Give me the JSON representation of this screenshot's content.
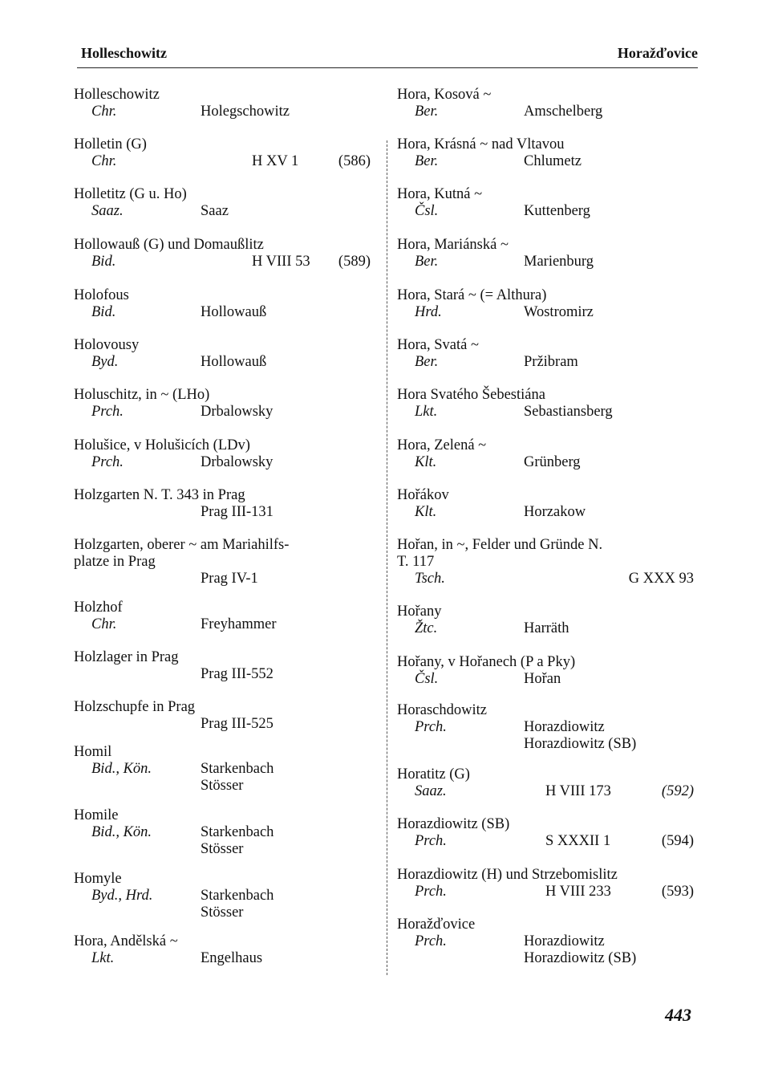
{
  "header": {
    "left": "Holleschowitz",
    "right": "Horažďovice"
  },
  "page_number": "443",
  "left_column": [
    {
      "head": "Holleschowitz",
      "rows": [
        {
          "abbr": "Chr.",
          "target": "Holegschowitz"
        }
      ]
    },
    {
      "head": "Holletin (G)",
      "rows": [
        {
          "abbr": "Chr.",
          "ref": "H XV 1",
          "page": "(586)"
        }
      ]
    },
    {
      "head": "Holletitz (G u. Ho)",
      "rows": [
        {
          "abbr": "Saaz.",
          "target": "Saaz"
        }
      ]
    },
    {
      "head": "Hollowauß (G) und Domaußlitz",
      "rows": [
        {
          "abbr": "Bid.",
          "ref": "H VIII 53",
          "page": "(589)"
        }
      ]
    },
    {
      "head": "Holofous",
      "rows": [
        {
          "abbr": "Bid.",
          "target": "Hollowauß"
        }
      ]
    },
    {
      "head": "Holovousy",
      "rows": [
        {
          "abbr": "Byd.",
          "target": "Hollowauß"
        }
      ]
    },
    {
      "head": "Holuschitz, in ~ (LHo)",
      "rows": [
        {
          "abbr": "Prch.",
          "target": "Drbalowsky"
        }
      ]
    },
    {
      "head": "Holušice, v Holušicích (LDv)",
      "rows": [
        {
          "abbr": "Prch.",
          "target": "Drbalowsky"
        }
      ]
    },
    {
      "head": "Holzgarten N. T. 343 in Prag",
      "rows": [
        {
          "target": "Prag III-131"
        }
      ]
    },
    {
      "head": "Holzgarten, oberer ~ am Mariahilfs-",
      "head2": "platze in Prag",
      "rows": [
        {
          "target": "Prag IV-1"
        }
      ]
    },
    {
      "head": "Holzhof",
      "rows": [
        {
          "abbr": "Chr.",
          "target": "Freyhammer"
        }
      ]
    },
    {
      "head": "Holzlager in Prag",
      "rows": [
        {
          "target": "Prag III-552"
        }
      ]
    },
    {
      "head": "Holzschupfe in Prag",
      "rows": [
        {
          "target": "Prag III-525"
        }
      ]
    },
    {
      "head": "Homil",
      "rows": [
        {
          "abbr": "Bid., Kön.",
          "target": "Starkenbach"
        },
        {
          "target": "Stösser"
        }
      ]
    },
    {
      "head": "Homile",
      "rows": [
        {
          "abbr": "Bid., Kön.",
          "target": "Starkenbach"
        },
        {
          "target": "Stösser"
        }
      ]
    },
    {
      "head": "Homyle",
      "rows": [
        {
          "abbr": "Byd., Hrd.",
          "target": "Starkenbach"
        },
        {
          "target": "Stösser"
        }
      ]
    },
    {
      "head": "Hora, Andělská ~",
      "rows": [
        {
          "abbr": "Lkt.",
          "target": "Engelhaus"
        }
      ]
    }
  ],
  "right_column": [
    {
      "head": "Hora, Kosová ~",
      "rows": [
        {
          "abbr": "Ber.",
          "target": "Amschelberg"
        }
      ]
    },
    {
      "head": "Hora, Krásná ~ nad Vltavou",
      "rows": [
        {
          "abbr": "Ber.",
          "target": "Chlumetz"
        }
      ]
    },
    {
      "head": "Hora, Kutná ~",
      "rows": [
        {
          "abbr": "Čsl.",
          "target": "Kuttenberg"
        }
      ]
    },
    {
      "head": "Hora, Mariánská ~",
      "rows": [
        {
          "abbr": "Ber.",
          "target": "Marienburg"
        }
      ]
    },
    {
      "head": "Hora, Stará ~ (= Althura)",
      "rows": [
        {
          "abbr": "Hrd.",
          "target": "Wostromirz"
        }
      ]
    },
    {
      "head": "Hora, Svatá ~",
      "rows": [
        {
          "abbr": "Ber.",
          "target": "Pržibram"
        }
      ]
    },
    {
      "head": "Hora Svatého Šebestiána",
      "rows": [
        {
          "abbr": "Lkt.",
          "target": "Sebastiansberg"
        }
      ]
    },
    {
      "head": "Hora, Zelená ~",
      "rows": [
        {
          "abbr": "Klt.",
          "target": "Grünberg"
        }
      ]
    },
    {
      "head": "Hořákov",
      "rows": [
        {
          "abbr": "Klt.",
          "target": "Horzakow"
        }
      ]
    },
    {
      "head": "Hořan, in ~, Felder und Gründe N.",
      "head2": "T. 117",
      "rows": [
        {
          "abbr": "Tsch.",
          "page": "G XXX 93"
        }
      ]
    },
    {
      "head": "Hořany",
      "rows": [
        {
          "abbr": "Žtc.",
          "target": "Harräth"
        }
      ]
    },
    {
      "head": "Hořany, v Hořanech (P a Pky)",
      "rows": [
        {
          "abbr": "Čsl.",
          "target": "Hořan"
        }
      ]
    },
    {
      "head": "Horaschdowitz",
      "rows": [
        {
          "abbr": "Prch.",
          "target": "Horazdiowitz"
        },
        {
          "target": "Horazdiowitz (SB)"
        }
      ]
    },
    {
      "head": "Horatitz (G)",
      "rows": [
        {
          "abbr": "Saaz.",
          "ref": "H VIII 173",
          "page": "(592)",
          "page_italic": true
        }
      ]
    },
    {
      "head": "Horazdiowitz (SB)",
      "rows": [
        {
          "abbr": "Prch.",
          "ref": "S XXXII 1",
          "page": "(594)"
        }
      ]
    },
    {
      "head": "Horazdiowitz (H) und Strzebomislitz",
      "rows": [
        {
          "abbr": "Prch.",
          "ref": "H VIII 233",
          "page": "(593)"
        }
      ]
    },
    {
      "head": "Horažďovice",
      "rows": [
        {
          "abbr": "Prch.",
          "target": "Horazdiowitz"
        },
        {
          "target": "Horazdiowitz (SB)"
        }
      ]
    }
  ]
}
